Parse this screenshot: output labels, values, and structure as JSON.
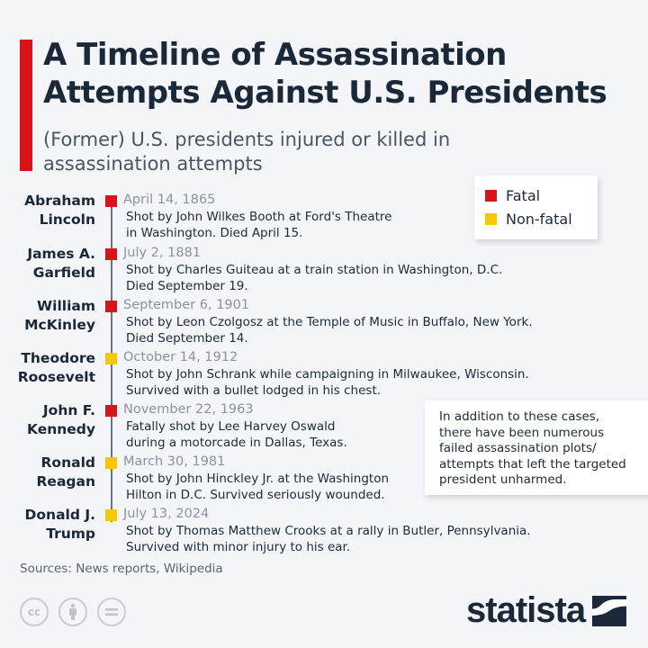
{
  "header": {
    "title": "A Timeline of Assassination Attempts Against U.S. Presidents",
    "subtitle": "(Former) U.S. presidents injured or killed in assassination attempts"
  },
  "colors": {
    "fatal": "#d7141a",
    "non_fatal": "#f5c800",
    "accent_bar": "#d7141a"
  },
  "legend": {
    "fatal": "Fatal",
    "non_fatal": "Non-fatal"
  },
  "entries": [
    {
      "name": "Abraham\nLincoln",
      "date": "April 14, 1865",
      "type": "fatal",
      "desc": "Shot by John Wilkes Booth at Ford's Theatre\nin Washington. Died April 15."
    },
    {
      "name": "James A.\nGarfield",
      "date": "July 2, 1881",
      "type": "fatal",
      "desc": "Shot by Charles Guiteau at a train station in Washington, D.C.\nDied September 19."
    },
    {
      "name": "William\nMcKinley",
      "date": "September 6, 1901",
      "type": "fatal",
      "desc": "Shot by Leon Czolgosz at the Temple of Music in Buffalo, New York.\nDied September 14."
    },
    {
      "name": "Theodore\nRoosevelt",
      "date": "October 14, 1912",
      "type": "non_fatal",
      "desc": "Shot by John Schrank while campaigning in Milwaukee, Wisconsin.\nSurvived with a bullet lodged in his chest."
    },
    {
      "name": "John F.\nKennedy",
      "date": "November 22, 1963",
      "type": "fatal",
      "desc": "Fatally shot by Lee Harvey Oswald\nduring a motorcade in Dallas, Texas."
    },
    {
      "name": "Ronald\nReagan",
      "date": "March 30, 1981",
      "type": "non_fatal",
      "desc": "Shot by John Hinckley Jr. at the Washington\nHilton in D.C. Survived seriously wounded."
    },
    {
      "name": "Donald J.\nTrump",
      "date": "July 13, 2024",
      "type": "non_fatal",
      "desc": "Shot by Thomas Matthew Crooks at a rally in Butler, Pennsylvania.\nSurvived with minor injury to his ear."
    }
  ],
  "note": "In addition to these cases,\nthere have been numerous\nfailed assassination plots/\nattempts that left the targeted\npresident unharmed.",
  "footer": {
    "source": "Sources: News reports, Wikipedia",
    "cc": "cc",
    "brand": "statista"
  }
}
